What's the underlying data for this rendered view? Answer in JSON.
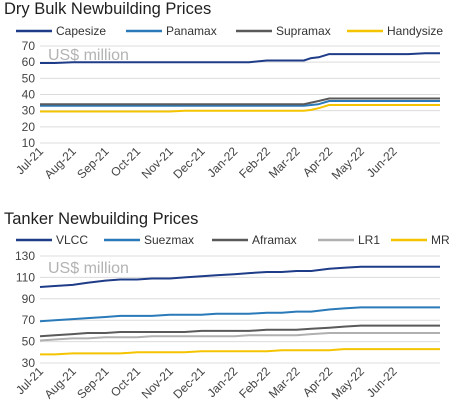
{
  "chart_data": [
    {
      "type": "line",
      "title": "Dry Bulk Newbuilding Prices",
      "unit_label": "US$ million",
      "categories": [
        "Jul-21",
        "Aug-21",
        "Sep-21",
        "Oct-21",
        "Nov-21",
        "Dec-21",
        "Jan-22",
        "Feb-22",
        "Mar-22",
        "Apr-22",
        "May-22",
        "Jun-22"
      ],
      "x": [
        "2021-07-01",
        "2021-07-15",
        "2021-08-01",
        "2021-08-15",
        "2021-09-01",
        "2021-09-15",
        "2021-10-01",
        "2021-10-15",
        "2021-11-01",
        "2021-11-15",
        "2021-12-01",
        "2021-12-15",
        "2022-01-01",
        "2022-01-15",
        "2022-02-01",
        "2022-02-15",
        "2022-03-01",
        "2022-03-08",
        "2022-03-15",
        "2022-03-22",
        "2022-04-01",
        "2022-04-15",
        "2022-05-01",
        "2022-05-15",
        "2022-06-01",
        "2022-06-15",
        "2022-07-01",
        "2022-07-15"
      ],
      "series": [
        {
          "name": "Capesize",
          "color": "#1f3c88",
          "values": [
            59.5,
            59.5,
            60,
            60,
            60,
            60,
            60,
            60,
            60,
            60,
            60,
            60,
            60,
            60,
            61,
            61,
            61,
            61,
            62.5,
            63,
            65,
            65,
            65,
            65,
            65,
            65,
            65.5,
            65.5
          ]
        },
        {
          "name": "Panamax",
          "color": "#2a7ab9",
          "values": [
            33,
            33,
            33,
            33,
            33,
            33,
            33,
            33,
            33,
            33,
            33,
            33,
            33,
            33,
            33,
            33,
            33,
            33,
            33.5,
            34,
            36,
            36,
            36,
            36,
            36,
            36,
            36,
            36
          ]
        },
        {
          "name": "Supramax",
          "color": "#5a5a5a",
          "values": [
            34,
            34,
            34,
            34,
            34,
            34,
            34,
            34,
            34,
            34,
            34,
            34,
            34,
            34,
            34,
            34,
            34,
            34,
            35,
            36,
            37.5,
            37.5,
            37.5,
            37.5,
            37.5,
            37.5,
            37.5,
            37.5
          ]
        },
        {
          "name": "Handysize",
          "color": "#f5c400",
          "values": [
            29.5,
            29.5,
            29.5,
            29.5,
            29.5,
            29.5,
            29.5,
            29.5,
            29.5,
            30,
            30,
            30,
            30,
            30,
            30,
            30,
            30,
            30,
            30.5,
            31.5,
            33.5,
            33.5,
            33.5,
            33.5,
            33.5,
            33.5,
            33.5,
            33.5
          ]
        }
      ],
      "ylim": [
        10,
        70
      ],
      "yticks": [
        10,
        20,
        30,
        40,
        50,
        60,
        70
      ],
      "xlim": [
        "2021-07-01",
        "2022-07-15"
      ],
      "legend": "top"
    },
    {
      "type": "line",
      "title": "Tanker Newbuilding Prices",
      "unit_label": "US$ million",
      "categories": [
        "Jul-21",
        "Aug-21",
        "Sep-21",
        "Oct-21",
        "Nov-21",
        "Dec-21",
        "Jan-22",
        "Feb-22",
        "Mar-22",
        "Apr-22",
        "May-22",
        "Jun-22"
      ],
      "x": [
        "2021-07-01",
        "2021-07-15",
        "2021-08-01",
        "2021-08-15",
        "2021-09-01",
        "2021-09-15",
        "2021-10-01",
        "2021-10-15",
        "2021-11-01",
        "2021-11-15",
        "2021-12-01",
        "2021-12-15",
        "2022-01-01",
        "2022-01-15",
        "2022-02-01",
        "2022-02-15",
        "2022-03-01",
        "2022-03-15",
        "2022-04-01",
        "2022-04-15",
        "2022-05-01",
        "2022-05-15",
        "2022-06-01",
        "2022-06-15",
        "2022-07-01",
        "2022-07-15"
      ],
      "series": [
        {
          "name": "VLCC",
          "color": "#1f3c88",
          "values": [
            101,
            102,
            103,
            105,
            107,
            108,
            108,
            109,
            109,
            110,
            111,
            112,
            113,
            114,
            115,
            115,
            116,
            116,
            118,
            119,
            120,
            120,
            120,
            120,
            120,
            120
          ]
        },
        {
          "name": "Suezmax",
          "color": "#2a7ab9",
          "values": [
            69,
            70,
            71,
            72,
            73,
            74,
            74,
            74,
            75,
            75,
            75,
            76,
            76,
            76,
            77,
            77,
            78,
            78,
            80,
            81,
            82,
            82,
            82,
            82,
            82,
            82
          ]
        },
        {
          "name": "Aframax",
          "color": "#5a5a5a",
          "values": [
            55,
            56,
            57,
            58,
            58,
            59,
            59,
            59,
            59,
            59,
            60,
            60,
            60,
            60,
            61,
            61,
            61,
            62,
            63,
            64,
            65,
            65,
            65,
            65,
            65,
            65
          ]
        },
        {
          "name": "LR1",
          "color": "#b0b0b0",
          "values": [
            51,
            52,
            53,
            53,
            54,
            54,
            54,
            55,
            55,
            55,
            55,
            55,
            55,
            56,
            56,
            56,
            56,
            57,
            58,
            58,
            58,
            58,
            58,
            58,
            58,
            58
          ]
        },
        {
          "name": "MR",
          "color": "#f5c400",
          "values": [
            38,
            38,
            39,
            39,
            39,
            39,
            40,
            40,
            40,
            40,
            41,
            41,
            41,
            41,
            41,
            42,
            42,
            42,
            42,
            43,
            43,
            43,
            43,
            43,
            43,
            43
          ]
        }
      ],
      "ylim": [
        30,
        130
      ],
      "yticks": [
        30,
        50,
        70,
        90,
        110,
        130
      ],
      "xlim": [
        "2021-07-01",
        "2022-07-15"
      ],
      "legend": "top"
    }
  ]
}
